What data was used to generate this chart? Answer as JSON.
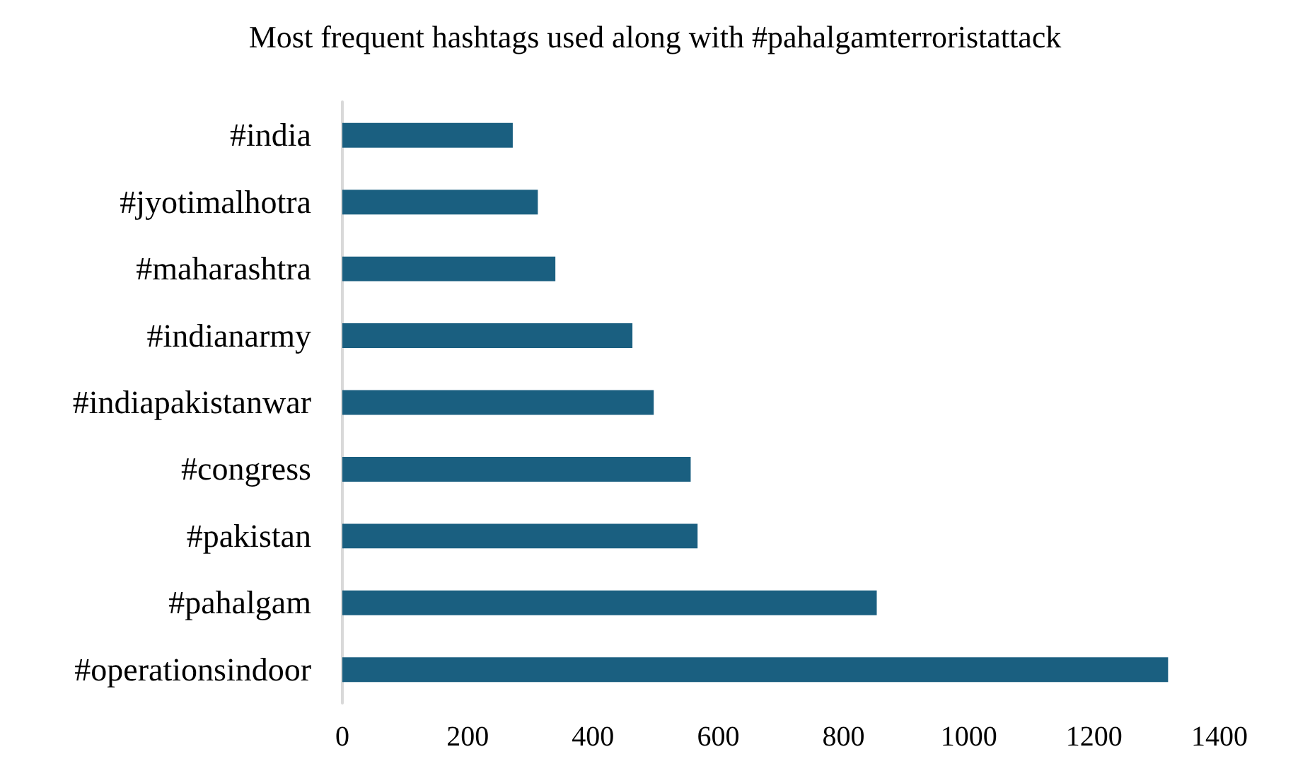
{
  "chart_data": {
    "type": "bar",
    "orientation": "horizontal",
    "title": "Most frequent hashtags used along with #pahalgamterroristattack",
    "categories": [
      "#india",
      "#jyotimalhotra",
      "#maharashtra",
      "#indianarmy",
      "#indiapakistanwar",
      "#congress",
      "#pakistan",
      "#pahalgam",
      "#operationsindoor"
    ],
    "values": [
      272,
      312,
      340,
      463,
      497,
      556,
      567,
      853,
      1318
    ],
    "color": "#1a5f80",
    "xlim": [
      0,
      1400
    ],
    "xticks": [
      0,
      200,
      400,
      600,
      800,
      1000,
      1200,
      1400
    ],
    "grid": false
  }
}
